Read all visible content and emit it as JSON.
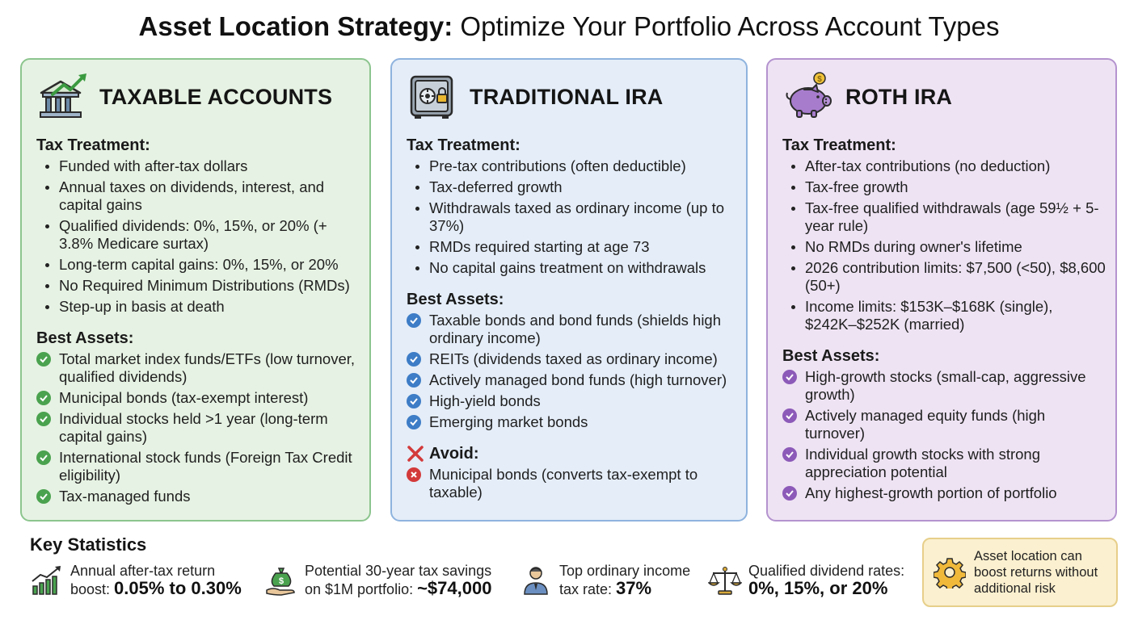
{
  "title": {
    "strong": "Asset Location Strategy:",
    "rest": " Optimize Your Portfolio Across Account Types"
  },
  "colors": {
    "green_accent": "#4aa24f",
    "blue_accent": "#3d7cc6",
    "purple_accent": "#8c5ab8",
    "avoid_red": "#d33a3a"
  },
  "taxable": {
    "title": "TAXABLE ACCOUNTS",
    "icon": "bank-growth-icon",
    "tax_heading": "Tax Treatment:",
    "tax_items": [
      "Funded with after-tax dollars",
      "Annual taxes on dividends, interest, and capital gains",
      "Qualified dividends: 0%, 15%, or 20% (+ 3.8% Medicare surtax)",
      "Long-term capital gains: 0%, 15%, or 20%",
      "No Required Minimum Distributions (RMDs)",
      "Step-up in basis at death"
    ],
    "best_heading": "Best Assets:",
    "best_items": [
      "Total market index funds/ETFs (low turnover, qualified dividends)",
      "Municipal bonds (tax-exempt interest)",
      "Individual stocks held >1 year (long-term capital gains)",
      "International stock funds (Foreign Tax Credit eligibility)",
      "Tax-managed funds"
    ]
  },
  "traditional": {
    "title": "TRADITIONAL IRA",
    "icon": "safe-lock-icon",
    "tax_heading": "Tax Treatment:",
    "tax_items": [
      "Pre-tax contributions (often deductible)",
      "Tax-deferred growth",
      "Withdrawals taxed as ordinary income (up to 37%)",
      "RMDs required starting at age 73",
      "No capital gains treatment on withdrawals"
    ],
    "best_heading": "Best Assets:",
    "best_items": [
      "Taxable bonds and bond funds (shields high ordinary income)",
      "REITs (dividends taxed as ordinary income)",
      "Actively managed bond funds (high turnover)",
      "High-yield bonds",
      "Emerging market bonds"
    ],
    "avoid_heading": "Avoid:",
    "avoid_items": [
      "Municipal bonds (converts tax-exempt to taxable)"
    ]
  },
  "roth": {
    "title": "ROTH IRA",
    "icon": "piggy-bank-icon",
    "tax_heading": "Tax Treatment:",
    "tax_items": [
      "After-tax contributions (no deduction)",
      "Tax-free growth",
      "Tax-free qualified withdrawals (age 59½ + 5-year rule)",
      "No RMDs during owner's lifetime",
      "2026 contribution limits: $7,500 (<50), $8,600 (50+)",
      "Income limits: $153K–$168K (single), $242K–$252K (married)"
    ],
    "best_heading": "Best Assets:",
    "best_items": [
      "High-growth stocks (small-cap, aggressive growth)",
      "Actively managed equity funds (high turnover)",
      "Individual growth stocks with strong appreciation potential",
      "Any highest-growth portion of portfolio"
    ]
  },
  "stats": {
    "heading": "Key Statistics",
    "items": [
      {
        "icon": "bar-chart-growth-icon",
        "line1": "Annual after-tax return",
        "line2_prefix": "boost: ",
        "value": "0.05% to 0.30%"
      },
      {
        "icon": "money-bag-hand-icon",
        "line1": "Potential 30-year tax savings",
        "line2_prefix": "on $1M portfolio: ",
        "value": "~$74,000"
      },
      {
        "icon": "person-icon",
        "line1": "Top ordinary income",
        "line2_prefix": "tax rate: ",
        "value": "37%"
      },
      {
        "icon": "balance-scale-icon",
        "line1": "Qualified dividend rates:",
        "line2_prefix": "",
        "value": "0%, 15%, or 20%"
      }
    ],
    "callout": {
      "icon": "gear-icon",
      "text_lines": [
        "Asset location can",
        "boost returns without",
        "additional risk"
      ]
    }
  }
}
